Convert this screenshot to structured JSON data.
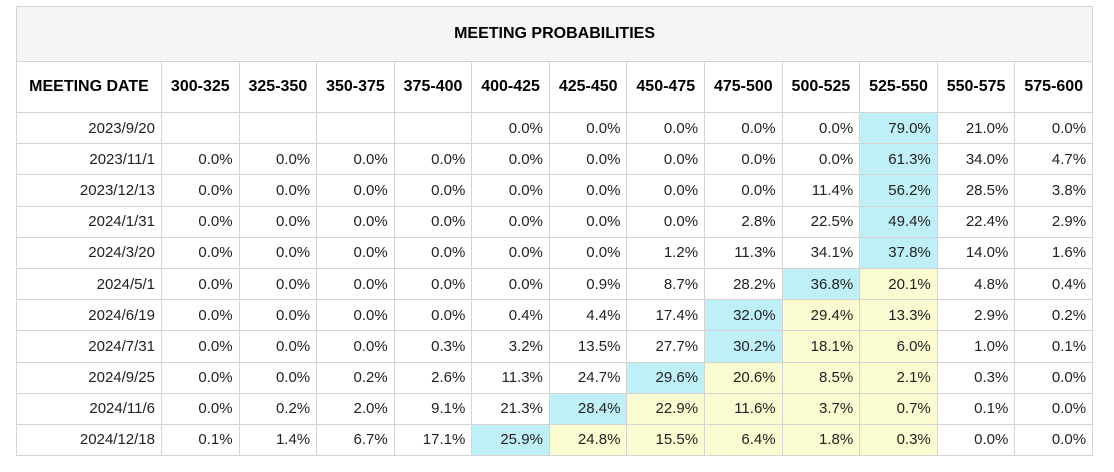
{
  "title": "MEETING PROBABILITIES",
  "date_header": "MEETING DATE",
  "columns": [
    "300-325",
    "325-350",
    "350-375",
    "375-400",
    "400-425",
    "425-450",
    "450-475",
    "475-500",
    "500-525",
    "525-550",
    "550-575",
    "575-600"
  ],
  "highlight_colors": {
    "blue": "#bff0f7",
    "yellow": "#fbfbd1"
  },
  "rows": [
    {
      "date": "2023/9/20",
      "values": [
        "",
        "",
        "",
        "",
        "0.0%",
        "0.0%",
        "0.0%",
        "0.0%",
        "0.0%",
        "79.0%",
        "21.0%",
        "0.0%"
      ],
      "highlight": {
        "blue": [
          9
        ],
        "yellow": []
      }
    },
    {
      "date": "2023/11/1",
      "values": [
        "0.0%",
        "0.0%",
        "0.0%",
        "0.0%",
        "0.0%",
        "0.0%",
        "0.0%",
        "0.0%",
        "0.0%",
        "61.3%",
        "34.0%",
        "4.7%"
      ],
      "highlight": {
        "blue": [
          9
        ],
        "yellow": []
      }
    },
    {
      "date": "2023/12/13",
      "values": [
        "0.0%",
        "0.0%",
        "0.0%",
        "0.0%",
        "0.0%",
        "0.0%",
        "0.0%",
        "0.0%",
        "11.4%",
        "56.2%",
        "28.5%",
        "3.8%"
      ],
      "highlight": {
        "blue": [
          9
        ],
        "yellow": []
      }
    },
    {
      "date": "2024/1/31",
      "values": [
        "0.0%",
        "0.0%",
        "0.0%",
        "0.0%",
        "0.0%",
        "0.0%",
        "0.0%",
        "2.8%",
        "22.5%",
        "49.4%",
        "22.4%",
        "2.9%"
      ],
      "highlight": {
        "blue": [
          9
        ],
        "yellow": []
      }
    },
    {
      "date": "2024/3/20",
      "values": [
        "0.0%",
        "0.0%",
        "0.0%",
        "0.0%",
        "0.0%",
        "0.0%",
        "1.2%",
        "11.3%",
        "34.1%",
        "37.8%",
        "14.0%",
        "1.6%"
      ],
      "highlight": {
        "blue": [
          9
        ],
        "yellow": []
      }
    },
    {
      "date": "2024/5/1",
      "values": [
        "0.0%",
        "0.0%",
        "0.0%",
        "0.0%",
        "0.0%",
        "0.9%",
        "8.7%",
        "28.2%",
        "36.8%",
        "20.1%",
        "4.8%",
        "0.4%"
      ],
      "highlight": {
        "blue": [
          8
        ],
        "yellow": [
          9
        ]
      }
    },
    {
      "date": "2024/6/19",
      "values": [
        "0.0%",
        "0.0%",
        "0.0%",
        "0.0%",
        "0.4%",
        "4.4%",
        "17.4%",
        "32.0%",
        "29.4%",
        "13.3%",
        "2.9%",
        "0.2%"
      ],
      "highlight": {
        "blue": [
          7
        ],
        "yellow": [
          8,
          9
        ]
      }
    },
    {
      "date": "2024/7/31",
      "values": [
        "0.0%",
        "0.0%",
        "0.0%",
        "0.3%",
        "3.2%",
        "13.5%",
        "27.7%",
        "30.2%",
        "18.1%",
        "6.0%",
        "1.0%",
        "0.1%"
      ],
      "highlight": {
        "blue": [
          7
        ],
        "yellow": [
          8,
          9
        ]
      }
    },
    {
      "date": "2024/9/25",
      "values": [
        "0.0%",
        "0.0%",
        "0.2%",
        "2.6%",
        "11.3%",
        "24.7%",
        "29.6%",
        "20.6%",
        "8.5%",
        "2.1%",
        "0.3%",
        "0.0%"
      ],
      "highlight": {
        "blue": [
          6
        ],
        "yellow": [
          7,
          8,
          9
        ]
      }
    },
    {
      "date": "2024/11/6",
      "values": [
        "0.0%",
        "0.2%",
        "2.0%",
        "9.1%",
        "21.3%",
        "28.4%",
        "22.9%",
        "11.6%",
        "3.7%",
        "0.7%",
        "0.1%",
        "0.0%"
      ],
      "highlight": {
        "blue": [
          5
        ],
        "yellow": [
          6,
          7,
          8,
          9
        ]
      }
    },
    {
      "date": "2024/12/18",
      "values": [
        "0.1%",
        "1.4%",
        "6.7%",
        "17.1%",
        "25.9%",
        "24.8%",
        "15.5%",
        "6.4%",
        "1.8%",
        "0.3%",
        "0.0%",
        "0.0%"
      ],
      "highlight": {
        "blue": [
          4
        ],
        "yellow": [
          5,
          6,
          7,
          8,
          9
        ]
      }
    }
  ]
}
